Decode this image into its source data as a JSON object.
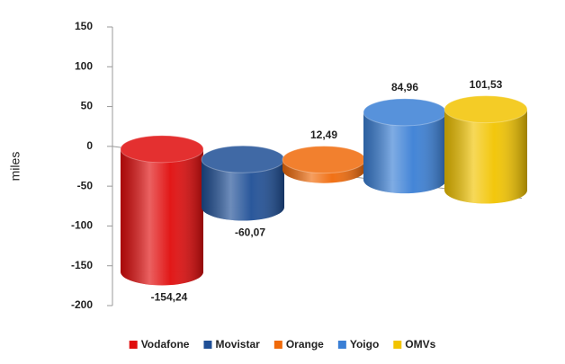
{
  "chart_data": {
    "type": "bar3d",
    "ylabel": "miles",
    "categories": [
      "Vodafone",
      "Movistar",
      "Orange",
      "Yoigo",
      "OMVs"
    ],
    "values": [
      -154.24,
      -60.07,
      12.49,
      84.96,
      101.53
    ],
    "value_labels": [
      "-154,24",
      "-60,07",
      "12,49",
      "84,96",
      "101,53"
    ],
    "colors": [
      "#e00c0c",
      "#1f4f96",
      "#f06a0a",
      "#3a7fd5",
      "#f2c400"
    ],
    "ylim": [
      -200,
      150
    ],
    "yticks": [
      -200,
      -150,
      -100,
      -50,
      0,
      50,
      100,
      150
    ],
    "legend": "bottom"
  }
}
